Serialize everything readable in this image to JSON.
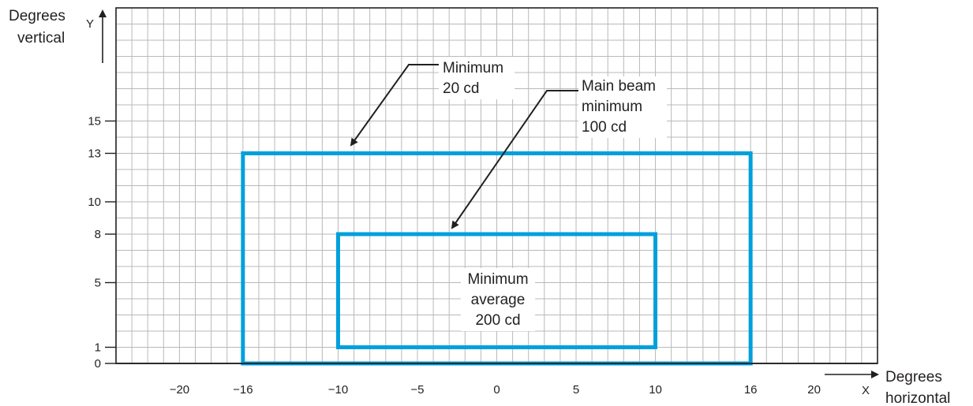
{
  "diagram": {
    "y_axis": {
      "title_line1": "Degrees",
      "title_line2": "vertical",
      "letter": "Y"
    },
    "x_axis": {
      "title_line1": "Degrees",
      "title_line2": "horizontal",
      "letter": "X"
    },
    "x_range": [
      -24,
      24
    ],
    "y_range": [
      0,
      22
    ],
    "x_ticks": [
      -20,
      -16,
      -10,
      -5,
      0,
      5,
      10,
      16,
      20
    ],
    "x_tick_labels": [
      "−20",
      "−16",
      "−10",
      "−5",
      "0",
      "5",
      "10",
      "16",
      "20"
    ],
    "y_ticks": [
      0,
      1,
      5,
      8,
      10,
      13,
      15
    ],
    "y_tick_labels": [
      "0",
      "1",
      "5",
      "8",
      "10",
      "13",
      "15"
    ],
    "grid_step": 1,
    "outer_zone": {
      "x_min": -16,
      "x_max": 16,
      "y_min": 0,
      "y_max": 13,
      "color": "#00a0dc"
    },
    "inner_zone": {
      "x_min": -10,
      "x_max": 10,
      "y_min": 1,
      "y_max": 8,
      "color": "#00a0dc"
    },
    "labels": {
      "outer": {
        "line1": "Minimum",
        "line2": "20 cd"
      },
      "main_beam": {
        "line1": "Main beam",
        "line2": "minimum",
        "line3": "100 cd"
      },
      "inner": {
        "line1": "Minimum",
        "line2": "average",
        "line3": "200 cd"
      }
    },
    "colors": {
      "grid": "#b9b9b9",
      "axis": "#231f20",
      "zone": "#00a0dc"
    }
  }
}
